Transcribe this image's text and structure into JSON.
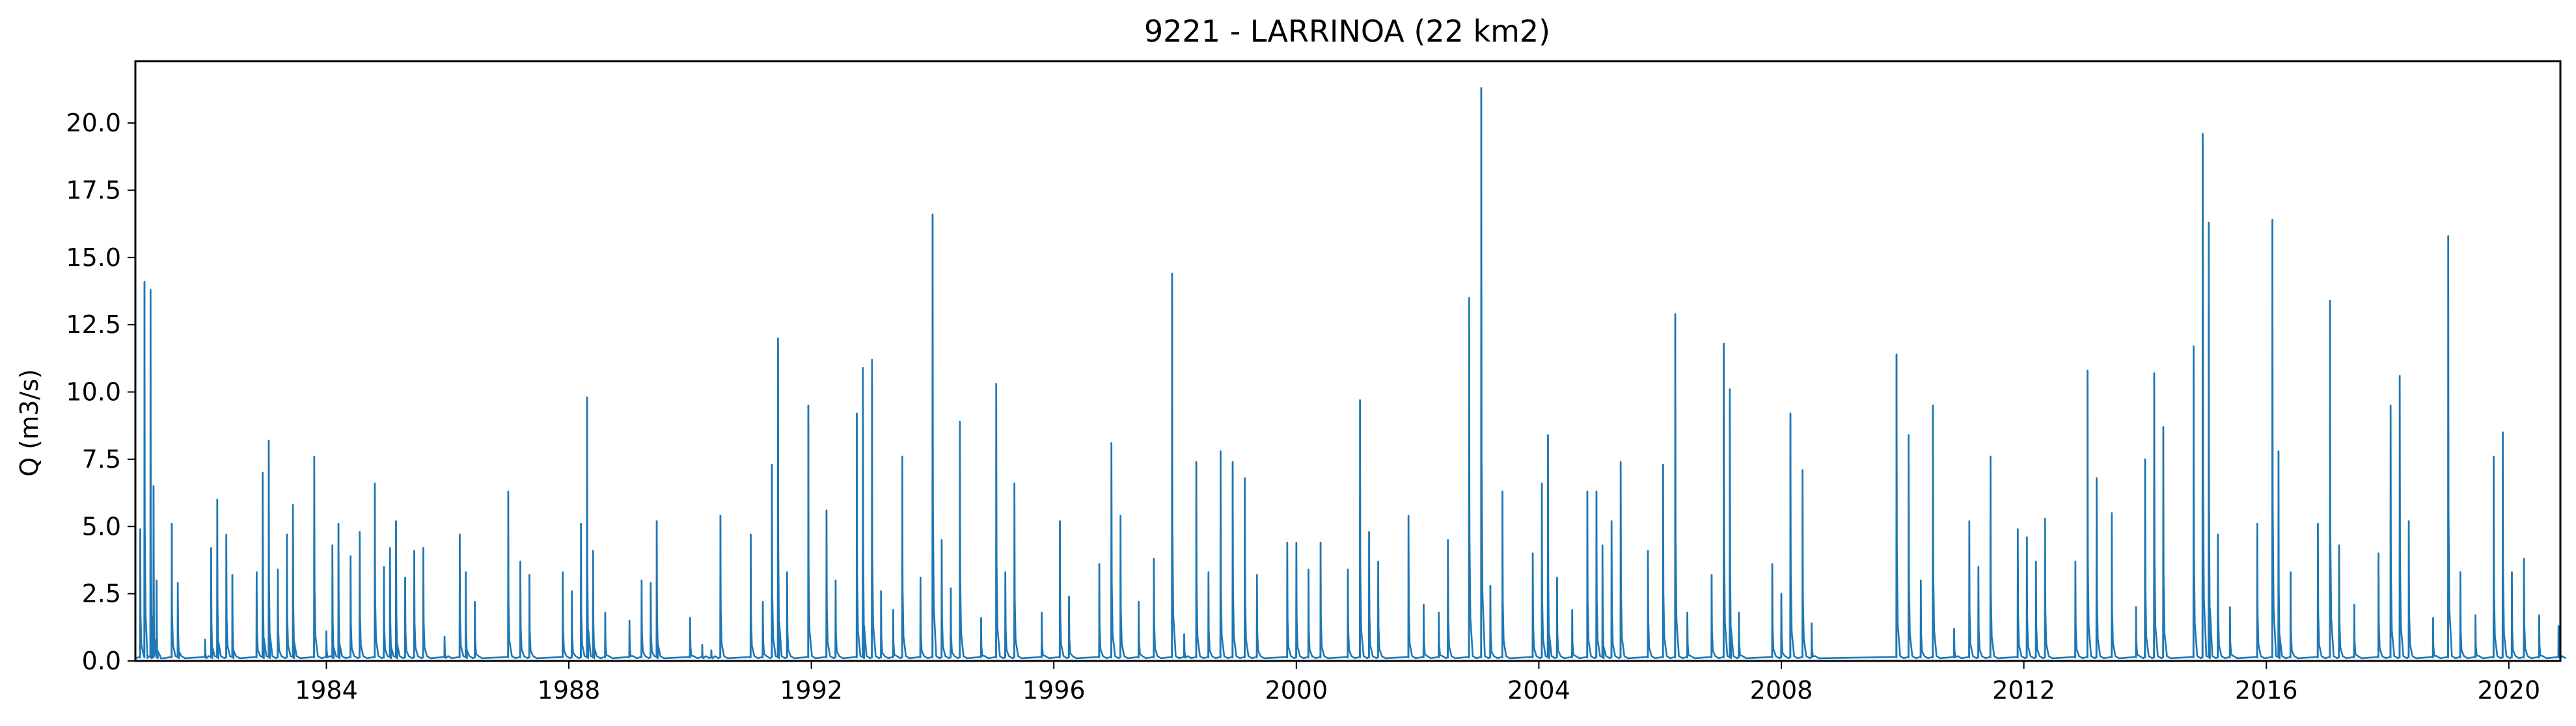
{
  "chart_data": {
    "type": "line",
    "title": "9221 - LARRINOA (22 km2)",
    "xlabel": "",
    "ylabel": "Q (m3/s)",
    "xlim": [
      1980.85,
      2020.85
    ],
    "ylim": [
      0,
      22.3
    ],
    "grid": false,
    "legend": "none",
    "x_ticks": [
      1984,
      1988,
      1992,
      1996,
      2000,
      2004,
      2008,
      2012,
      2016,
      2020
    ],
    "y_ticks": [
      0.0,
      2.5,
      5.0,
      7.5,
      10.0,
      12.5,
      15.0,
      17.5,
      20.0
    ],
    "y_tick_labels": [
      "0.0",
      "2.5",
      "5.0",
      "7.5",
      "10.0",
      "12.5",
      "15.0",
      "17.5",
      "20.0"
    ],
    "series": [
      {
        "name": "",
        "color": "#1f77b4",
        "baseflow": 0.1,
        "peaks": [
          [
            1980.93,
            4.9
          ],
          [
            1981.0,
            14.1
          ],
          [
            1981.1,
            13.8
          ],
          [
            1981.15,
            6.5
          ],
          [
            1981.2,
            3.0
          ],
          [
            1981.45,
            5.1
          ],
          [
            1981.55,
            2.9
          ],
          [
            1982.0,
            0.8
          ],
          [
            1982.1,
            4.2
          ],
          [
            1982.2,
            6.0
          ],
          [
            1982.35,
            4.7
          ],
          [
            1982.45,
            3.2
          ],
          [
            1982.85,
            3.3
          ],
          [
            1982.95,
            7.0
          ],
          [
            1983.05,
            8.2
          ],
          [
            1983.2,
            3.4
          ],
          [
            1983.35,
            4.7
          ],
          [
            1983.45,
            5.8
          ],
          [
            1983.8,
            7.6
          ],
          [
            1984.0,
            1.1
          ],
          [
            1984.1,
            4.3
          ],
          [
            1984.2,
            5.1
          ],
          [
            1984.4,
            3.9
          ],
          [
            1984.55,
            4.8
          ],
          [
            1984.8,
            6.6
          ],
          [
            1984.95,
            3.5
          ],
          [
            1985.05,
            4.2
          ],
          [
            1985.15,
            5.2
          ],
          [
            1985.3,
            3.1
          ],
          [
            1985.45,
            4.1
          ],
          [
            1985.6,
            4.2
          ],
          [
            1985.95,
            0.9
          ],
          [
            1986.2,
            4.7
          ],
          [
            1986.3,
            3.3
          ],
          [
            1986.45,
            2.2
          ],
          [
            1987.0,
            6.3
          ],
          [
            1987.2,
            3.7
          ],
          [
            1987.35,
            3.2
          ],
          [
            1987.9,
            3.3
          ],
          [
            1988.05,
            2.6
          ],
          [
            1988.2,
            5.1
          ],
          [
            1988.3,
            9.8
          ],
          [
            1988.4,
            4.1
          ],
          [
            1988.6,
            1.8
          ],
          [
            1989.0,
            1.5
          ],
          [
            1989.2,
            3.0
          ],
          [
            1989.35,
            2.9
          ],
          [
            1989.45,
            5.2
          ],
          [
            1990.0,
            1.6
          ],
          [
            1990.2,
            0.6
          ],
          [
            1990.35,
            0.4
          ],
          [
            1990.5,
            5.4
          ],
          [
            1991.0,
            4.7
          ],
          [
            1991.2,
            2.2
          ],
          [
            1991.35,
            7.3
          ],
          [
            1991.45,
            12.0
          ],
          [
            1991.6,
            3.3
          ],
          [
            1991.95,
            9.5
          ],
          [
            1992.25,
            5.6
          ],
          [
            1992.4,
            3.0
          ],
          [
            1992.75,
            9.2
          ],
          [
            1992.85,
            10.9
          ],
          [
            1993.0,
            11.2
          ],
          [
            1993.15,
            2.6
          ],
          [
            1993.35,
            1.9
          ],
          [
            1993.5,
            7.6
          ],
          [
            1993.8,
            3.1
          ],
          [
            1994.0,
            16.6
          ],
          [
            1994.15,
            4.5
          ],
          [
            1994.3,
            2.7
          ],
          [
            1994.45,
            8.9
          ],
          [
            1994.8,
            1.6
          ],
          [
            1995.05,
            10.3
          ],
          [
            1995.2,
            3.3
          ],
          [
            1995.35,
            6.6
          ],
          [
            1995.8,
            1.8
          ],
          [
            1996.1,
            5.2
          ],
          [
            1996.25,
            2.4
          ],
          [
            1996.75,
            3.6
          ],
          [
            1996.95,
            8.1
          ],
          [
            1997.1,
            5.4
          ],
          [
            1997.4,
            2.2
          ],
          [
            1997.65,
            3.8
          ],
          [
            1997.95,
            14.4
          ],
          [
            1998.15,
            1.0
          ],
          [
            1998.35,
            7.4
          ],
          [
            1998.55,
            3.3
          ],
          [
            1998.75,
            7.8
          ],
          [
            1998.95,
            7.4
          ],
          [
            1999.15,
            6.8
          ],
          [
            1999.35,
            3.2
          ],
          [
            1999.85,
            4.4
          ],
          [
            2000.0,
            4.4
          ],
          [
            2000.2,
            3.4
          ],
          [
            2000.4,
            4.4
          ],
          [
            2000.85,
            3.4
          ],
          [
            2001.05,
            9.7
          ],
          [
            2001.2,
            4.8
          ],
          [
            2001.35,
            3.7
          ],
          [
            2001.85,
            5.4
          ],
          [
            2002.1,
            2.1
          ],
          [
            2002.35,
            1.8
          ],
          [
            2002.5,
            4.5
          ],
          [
            2002.85,
            13.5
          ],
          [
            2003.05,
            21.3
          ],
          [
            2003.2,
            2.8
          ],
          [
            2003.4,
            6.3
          ],
          [
            2003.9,
            4.0
          ],
          [
            2004.05,
            6.6
          ],
          [
            2004.15,
            8.4
          ],
          [
            2004.3,
            3.1
          ],
          [
            2004.55,
            1.9
          ],
          [
            2004.8,
            6.3
          ],
          [
            2004.95,
            6.3
          ],
          [
            2005.05,
            4.3
          ],
          [
            2005.2,
            5.2
          ],
          [
            2005.35,
            7.4
          ],
          [
            2005.8,
            4.1
          ],
          [
            2006.05,
            7.3
          ],
          [
            2006.25,
            12.9
          ],
          [
            2006.45,
            1.8
          ],
          [
            2006.85,
            3.2
          ],
          [
            2007.05,
            11.8
          ],
          [
            2007.15,
            10.1
          ],
          [
            2007.3,
            1.8
          ],
          [
            2007.85,
            3.6
          ],
          [
            2008.0,
            2.5
          ],
          [
            2008.15,
            9.2
          ],
          [
            2008.35,
            7.1
          ],
          [
            2008.5,
            1.4
          ],
          [
            2009.9,
            11.4
          ],
          [
            2010.1,
            8.4
          ],
          [
            2010.3,
            3.0
          ],
          [
            2010.5,
            9.5
          ],
          [
            2010.85,
            1.2
          ],
          [
            2011.1,
            5.2
          ],
          [
            2011.25,
            3.5
          ],
          [
            2011.45,
            7.6
          ],
          [
            2011.9,
            4.9
          ],
          [
            2012.05,
            4.6
          ],
          [
            2012.2,
            3.7
          ],
          [
            2012.35,
            5.3
          ],
          [
            2012.85,
            3.7
          ],
          [
            2013.05,
            10.8
          ],
          [
            2013.2,
            6.8
          ],
          [
            2013.45,
            5.5
          ],
          [
            2013.85,
            2.0
          ],
          [
            2014.0,
            7.5
          ],
          [
            2014.15,
            10.7
          ],
          [
            2014.3,
            8.7
          ],
          [
            2014.8,
            11.7
          ],
          [
            2014.95,
            19.6
          ],
          [
            2015.05,
            16.3
          ],
          [
            2015.2,
            4.7
          ],
          [
            2015.4,
            2.0
          ],
          [
            2015.85,
            5.1
          ],
          [
            2016.1,
            16.4
          ],
          [
            2016.2,
            7.8
          ],
          [
            2016.4,
            3.3
          ],
          [
            2016.85,
            5.1
          ],
          [
            2017.05,
            13.4
          ],
          [
            2017.2,
            4.3
          ],
          [
            2017.45,
            2.1
          ],
          [
            2017.85,
            4.0
          ],
          [
            2018.05,
            9.5
          ],
          [
            2018.2,
            10.6
          ],
          [
            2018.35,
            5.2
          ],
          [
            2018.75,
            1.6
          ],
          [
            2019.0,
            15.8
          ],
          [
            2019.2,
            3.3
          ],
          [
            2019.45,
            1.7
          ],
          [
            2019.75,
            7.6
          ],
          [
            2019.9,
            8.5
          ],
          [
            2020.05,
            3.3
          ],
          [
            2020.25,
            3.8
          ],
          [
            2020.5,
            1.7
          ],
          [
            2020.82,
            1.3
          ]
        ]
      }
    ]
  }
}
